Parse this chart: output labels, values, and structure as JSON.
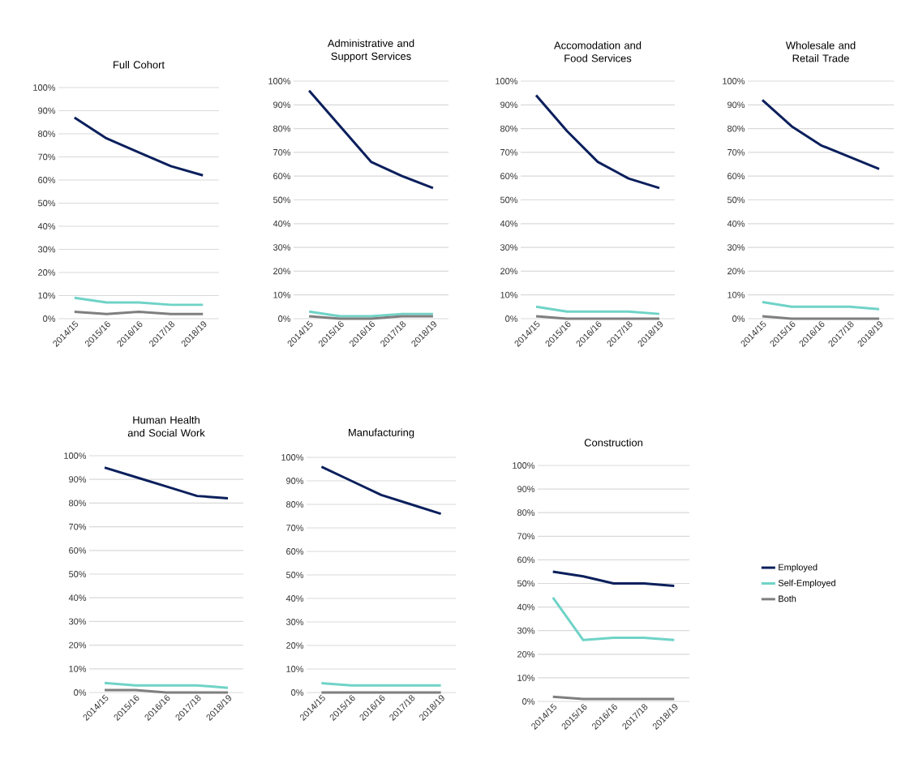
{
  "chart_data": [
    {
      "type": "line",
      "title": "Full Cohort",
      "categories": [
        "2014/15",
        "2015/16",
        "2016/16",
        "2017/18",
        "2018/19"
      ],
      "series": [
        {
          "color": "#0b1f5c",
          "values": [
            87,
            78,
            72,
            66,
            62
          ]
        },
        {
          "color": "#6fd3c7",
          "values": [
            9,
            7,
            7,
            6,
            6
          ]
        },
        {
          "color": "#7f7f7f",
          "values": [
            3,
            2,
            3,
            2,
            2
          ]
        }
      ],
      "ylim": [
        0,
        100
      ],
      "yticks": [
        {
          "value": 0,
          "label": "0%"
        },
        {
          "value": 10,
          "label": "10%"
        },
        {
          "value": 20,
          "label": "20%"
        },
        {
          "value": 30,
          "label": "30%"
        },
        {
          "value": 40,
          "label": "40%"
        },
        {
          "value": 50,
          "label": "50%"
        },
        {
          "value": 60,
          "label": "60%"
        },
        {
          "value": 70,
          "label": "70%"
        },
        {
          "value": 80,
          "label": "80%"
        },
        {
          "value": 90,
          "label": "90%"
        },
        {
          "value": 100,
          "label": "100%"
        }
      ],
      "grid": "y"
    },
    {
      "type": "line",
      "title": "Administrative and Support Services",
      "categories": [
        "2014/15",
        "2015/16",
        "2016/16",
        "2017/18",
        "2018/19"
      ],
      "series": [
        {
          "color": "#0b1f5c",
          "values": [
            96,
            81,
            66,
            60,
            55
          ]
        },
        {
          "color": "#6fd3c7",
          "values": [
            3,
            1,
            1,
            2,
            2
          ]
        },
        {
          "color": "#7f7f7f",
          "values": [
            1,
            0,
            0,
            1,
            1
          ]
        }
      ],
      "ylim": [
        0,
        100
      ],
      "yticks": [
        {
          "value": 0,
          "label": "0%"
        },
        {
          "value": 10,
          "label": "10%"
        },
        {
          "value": 20,
          "label": "20%"
        },
        {
          "value": 30,
          "label": "30%"
        },
        {
          "value": 40,
          "label": "40%"
        },
        {
          "value": 50,
          "label": "50%"
        },
        {
          "value": 60,
          "label": "60%"
        },
        {
          "value": 70,
          "label": "70%"
        },
        {
          "value": 80,
          "label": "80%"
        },
        {
          "value": 90,
          "label": "90%"
        },
        {
          "value": 100,
          "label": "100%"
        }
      ],
      "grid": "y"
    },
    {
      "type": "line",
      "title": "Accomodation and Food Services",
      "categories": [
        "2014/15",
        "2015/16",
        "2016/16",
        "2017/18",
        "2018/19"
      ],
      "series": [
        {
          "color": "#0b1f5c",
          "values": [
            94,
            79,
            66,
            59,
            55
          ]
        },
        {
          "color": "#6fd3c7",
          "values": [
            5,
            3,
            3,
            3,
            2
          ]
        },
        {
          "color": "#7f7f7f",
          "values": [
            1,
            0,
            0,
            0,
            0
          ]
        }
      ],
      "ylim": [
        0,
        100
      ],
      "yticks": [
        {
          "value": 0,
          "label": "0%"
        },
        {
          "value": 10,
          "label": "10%"
        },
        {
          "value": 20,
          "label": "20%"
        },
        {
          "value": 30,
          "label": "30%"
        },
        {
          "value": 40,
          "label": "40%"
        },
        {
          "value": 50,
          "label": "50%"
        },
        {
          "value": 60,
          "label": "60%"
        },
        {
          "value": 70,
          "label": "70%"
        },
        {
          "value": 80,
          "label": "80%"
        },
        {
          "value": 90,
          "label": "90%"
        },
        {
          "value": 100,
          "label": "100%"
        }
      ],
      "grid": "y"
    },
    {
      "type": "line",
      "title": "Wholesale and Retail Trade",
      "categories": [
        "2014/15",
        "2015/16",
        "2016/16",
        "2017/18",
        "2018/19"
      ],
      "series": [
        {
          "color": "#0b1f5c",
          "values": [
            92,
            81,
            73,
            68,
            63
          ]
        },
        {
          "color": "#6fd3c7",
          "values": [
            7,
            5,
            5,
            5,
            4
          ]
        },
        {
          "color": "#7f7f7f",
          "values": [
            1,
            0,
            0,
            0,
            0
          ]
        }
      ],
      "ylim": [
        0,
        100
      ],
      "yticks": [
        {
          "value": 0,
          "label": "0%"
        },
        {
          "value": 10,
          "label": "10%"
        },
        {
          "value": 20,
          "label": "20%"
        },
        {
          "value": 30,
          "label": "30%"
        },
        {
          "value": 40,
          "label": "40%"
        },
        {
          "value": 50,
          "label": "50%"
        },
        {
          "value": 60,
          "label": "60%"
        },
        {
          "value": 70,
          "label": "70%"
        },
        {
          "value": 80,
          "label": "80%"
        },
        {
          "value": 90,
          "label": "90%"
        },
        {
          "value": 100,
          "label": "100%"
        }
      ],
      "grid": "y"
    },
    {
      "type": "line",
      "title": "Human Health and Social Work",
      "categories": [
        "2014/15",
        "2015/16",
        "2016/16",
        "2017/18",
        "2018/19"
      ],
      "series": [
        {
          "color": "#0b1f5c",
          "values": [
            95,
            91,
            87,
            83,
            82
          ]
        },
        {
          "color": "#6fd3c7",
          "values": [
            4,
            3,
            3,
            3,
            2
          ]
        },
        {
          "color": "#7f7f7f",
          "values": [
            1,
            1,
            0,
            0,
            0
          ]
        }
      ],
      "ylim": [
        0,
        100
      ],
      "yticks": [
        {
          "value": 0,
          "label": "0%"
        },
        {
          "value": 10,
          "label": "10%"
        },
        {
          "value": 20,
          "label": "20%"
        },
        {
          "value": 30,
          "label": "30%"
        },
        {
          "value": 40,
          "label": "40%"
        },
        {
          "value": 50,
          "label": "50%"
        },
        {
          "value": 60,
          "label": "60%"
        },
        {
          "value": 70,
          "label": "70%"
        },
        {
          "value": 80,
          "label": "80%"
        },
        {
          "value": 90,
          "label": "90%"
        },
        {
          "value": 100,
          "label": "100%"
        }
      ],
      "grid": "y"
    },
    {
      "type": "line",
      "title": "Manufacturing",
      "categories": [
        "2014/15",
        "2015/16",
        "2016/16",
        "2017/18",
        "2018/19"
      ],
      "series": [
        {
          "color": "#0b1f5c",
          "values": [
            96,
            90,
            84,
            80,
            76
          ]
        },
        {
          "color": "#6fd3c7",
          "values": [
            4,
            3,
            3,
            3,
            3
          ]
        },
        {
          "color": "#7f7f7f",
          "values": [
            0,
            0,
            0,
            0,
            0
          ]
        }
      ],
      "ylim": [
        0,
        100
      ],
      "yticks": [
        {
          "value": 0,
          "label": "0%"
        },
        {
          "value": 10,
          "label": "10%"
        },
        {
          "value": 20,
          "label": "20%"
        },
        {
          "value": 30,
          "label": "30%"
        },
        {
          "value": 40,
          "label": "40%"
        },
        {
          "value": 50,
          "label": "50%"
        },
        {
          "value": 60,
          "label": "60%"
        },
        {
          "value": 70,
          "label": "70%"
        },
        {
          "value": 80,
          "label": "80%"
        },
        {
          "value": 90,
          "label": "90%"
        },
        {
          "value": 100,
          "label": "100%"
        }
      ],
      "grid": "y"
    },
    {
      "type": "line",
      "title": "Construction",
      "categories": [
        "2014/15",
        "2015/16",
        "2016/16",
        "2017/18",
        "2018/19"
      ],
      "series": [
        {
          "name": "Employed",
          "color": "#0b1f5c",
          "values": [
            55,
            53,
            50,
            50,
            49
          ]
        },
        {
          "name": "Self-Employed",
          "color": "#6fd3c7",
          "values": [
            44,
            26,
            27,
            27,
            26
          ]
        },
        {
          "name": "Both",
          "color": "#7f7f7f",
          "values": [
            2,
            1,
            1,
            1,
            1
          ]
        }
      ],
      "ylim": [
        0,
        100
      ],
      "yticks": [
        {
          "value": 0,
          "label": "0%"
        },
        {
          "value": 10,
          "label": "10%"
        },
        {
          "value": 20,
          "label": "20%"
        },
        {
          "value": 30,
          "label": "30%"
        },
        {
          "value": 40,
          "label": "40%"
        },
        {
          "value": 50,
          "label": "50%"
        },
        {
          "value": 60,
          "label": "60%"
        },
        {
          "value": 70,
          "label": "70%"
        },
        {
          "value": 80,
          "label": "80%"
        },
        {
          "value": 90,
          "label": "90%"
        },
        {
          "value": 100,
          "label": "100%"
        }
      ],
      "grid": "y",
      "legend": "right"
    }
  ]
}
